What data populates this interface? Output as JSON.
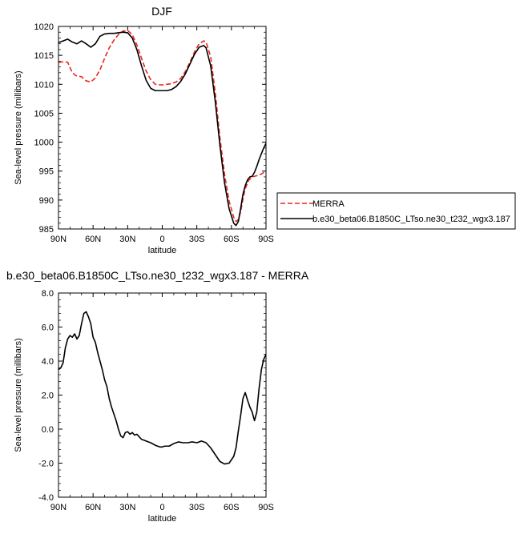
{
  "chart_data": [
    {
      "type": "line",
      "title": "DJF",
      "xlabel": "latitude",
      "ylabel": "Sea-level pressure (millibars)",
      "xlim": [
        90,
        -90
      ],
      "ylim": [
        985,
        1020
      ],
      "x_ticks": [
        90,
        60,
        30,
        0,
        -30,
        -60,
        -90
      ],
      "x_tick_labels": [
        "90N",
        "60N",
        "30N",
        "0",
        "30S",
        "60S",
        "90S"
      ],
      "y_ticks": [
        985,
        990,
        995,
        1000,
        1005,
        1010,
        1015,
        1020
      ],
      "y_tick_labels": [
        "985",
        "990",
        "995",
        "1000",
        "1005",
        "1010",
        "1015",
        "1020"
      ],
      "legend_position": "outside-right-bottom",
      "series": [
        {
          "name": "MERRA",
          "color": "#e8271d",
          "dash": "dashed",
          "x": [
            90,
            85,
            82,
            78,
            75,
            70,
            66,
            62,
            58,
            54,
            50,
            46,
            42,
            38,
            34,
            30,
            26,
            22,
            18,
            14,
            10,
            6,
            2,
            0,
            -4,
            -8,
            -12,
            -16,
            -20,
            -24,
            -28,
            -32,
            -36,
            -38,
            -42,
            -46,
            -50,
            -54,
            -58,
            -62,
            -64,
            -66,
            -68,
            -70,
            -72,
            -75,
            -78,
            -82,
            -86,
            -90
          ],
          "y": [
            1013.8,
            1013.9,
            1013.8,
            1012.0,
            1011.5,
            1011.3,
            1010.6,
            1010.4,
            1011.1,
            1012.5,
            1014.5,
            1016.3,
            1017.6,
            1018.6,
            1019.2,
            1019.3,
            1018.6,
            1016.8,
            1014.5,
            1012.3,
            1010.8,
            1010.0,
            1009.9,
            1009.9,
            1010.0,
            1010.1,
            1010.4,
            1011.0,
            1012.2,
            1013.8,
            1015.6,
            1017.0,
            1017.5,
            1017.3,
            1014.8,
            1008.5,
            1000.8,
            994.5,
            989.8,
            987.0,
            986.3,
            986.6,
            988.0,
            990.2,
            992.0,
            993.4,
            994.0,
            994.2,
            994.5,
            995.0
          ]
        },
        {
          "name": "b.e30_beta06.B1850C_LTso.ne30_t232_wgx3.187",
          "color": "#000000",
          "dash": "solid",
          "x": [
            90,
            86,
            82,
            78,
            74,
            70,
            66,
            62,
            58,
            54,
            50,
            46,
            42,
            38,
            34,
            30,
            26,
            22,
            18,
            14,
            10,
            6,
            2,
            0,
            -4,
            -8,
            -12,
            -16,
            -20,
            -24,
            -28,
            -32,
            -36,
            -38,
            -42,
            -46,
            -50,
            -54,
            -58,
            -62,
            -64,
            -66,
            -68,
            -70,
            -72,
            -74,
            -76,
            -78,
            -80,
            -82,
            -84,
            -86,
            -88,
            -90
          ],
          "y": [
            1017.2,
            1017.5,
            1017.8,
            1017.3,
            1017.0,
            1017.5,
            1017.0,
            1016.4,
            1017.0,
            1018.3,
            1018.7,
            1018.8,
            1018.8,
            1018.9,
            1019.0,
            1018.9,
            1018.0,
            1016.0,
            1013.2,
            1010.7,
            1009.3,
            1008.9,
            1008.9,
            1008.9,
            1008.9,
            1009.1,
            1009.6,
            1010.5,
            1011.8,
            1013.5,
            1015.2,
            1016.4,
            1016.7,
            1016.3,
            1013.2,
            1007.0,
            999.5,
            993.0,
            988.5,
            986.0,
            985.6,
            986.3,
            988.5,
            991.0,
            992.5,
            993.5,
            994.0,
            994.1,
            994.8,
            995.8,
            997.0,
            998.0,
            999.0,
            999.8
          ]
        }
      ]
    },
    {
      "type": "line",
      "title": "b.e30_beta06.B1850C_LTso.ne30_t232_wgx3.187 - MERRA",
      "xlabel": "latitude",
      "ylabel": "Sea-level pressure (millibars)",
      "xlim": [
        90,
        -90
      ],
      "ylim": [
        -4.0,
        8.0
      ],
      "x_ticks": [
        90,
        60,
        30,
        0,
        -30,
        -60,
        -90
      ],
      "x_tick_labels": [
        "90N",
        "60N",
        "30N",
        "0",
        "30S",
        "60S",
        "90S"
      ],
      "y_ticks": [
        -4,
        -2,
        0,
        2,
        4,
        6,
        8
      ],
      "y_tick_labels": [
        "-4.0",
        "-2.0",
        "0.0",
        "2.0",
        "4.0",
        "6.0",
        "8.0"
      ],
      "series": [
        {
          "color": "#000000",
          "dash": "solid",
          "x": [
            90,
            88,
            86,
            84,
            82,
            80,
            78,
            76,
            74,
            72,
            70,
            68,
            66,
            64,
            62,
            60,
            58,
            56,
            54,
            52,
            50,
            48,
            46,
            44,
            42,
            40,
            38,
            36,
            34,
            32,
            30,
            28,
            26,
            24,
            22,
            20,
            18,
            16,
            14,
            12,
            10,
            6,
            2,
            0,
            -2,
            -6,
            -10,
            -14,
            -18,
            -22,
            -26,
            -30,
            -34,
            -38,
            -42,
            -46,
            -50,
            -54,
            -58,
            -62,
            -64,
            -66,
            -68,
            -70,
            -72,
            -74,
            -76,
            -78,
            -80,
            -82,
            -84,
            -86,
            -88,
            -90
          ],
          "y": [
            3.5,
            3.6,
            3.9,
            4.8,
            5.3,
            5.5,
            5.4,
            5.6,
            5.3,
            5.5,
            6.2,
            6.8,
            6.9,
            6.6,
            6.2,
            5.4,
            5.1,
            4.5,
            4.0,
            3.5,
            2.9,
            2.5,
            1.8,
            1.3,
            0.9,
            0.5,
            0.0,
            -0.4,
            -0.5,
            -0.2,
            -0.15,
            -0.3,
            -0.2,
            -0.35,
            -0.3,
            -0.45,
            -0.6,
            -0.65,
            -0.7,
            -0.75,
            -0.8,
            -0.95,
            -1.05,
            -1.05,
            -1.0,
            -1.0,
            -0.85,
            -0.75,
            -0.8,
            -0.8,
            -0.75,
            -0.8,
            -0.7,
            -0.8,
            -1.1,
            -1.5,
            -1.9,
            -2.05,
            -2.0,
            -1.6,
            -1.1,
            -0.1,
            0.8,
            1.8,
            2.15,
            1.7,
            1.3,
            1.0,
            0.5,
            1.0,
            2.4,
            3.5,
            4.1,
            4.4
          ]
        }
      ]
    }
  ]
}
